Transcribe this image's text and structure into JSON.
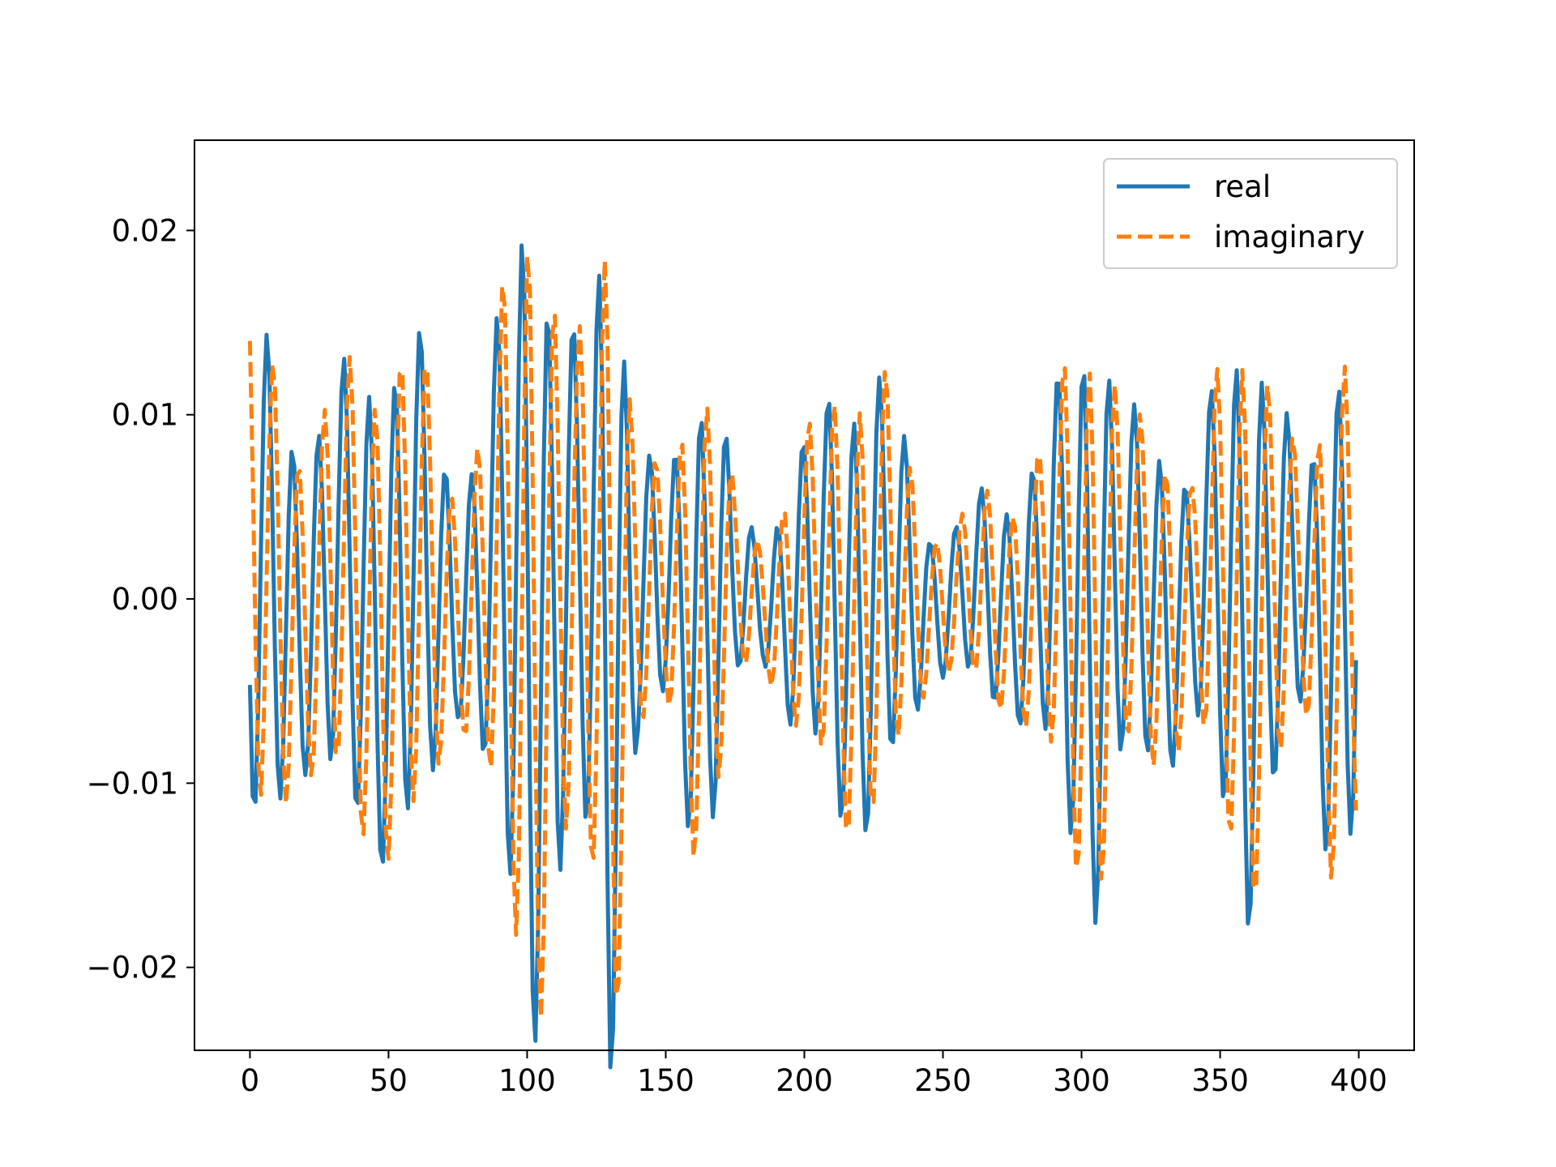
{
  "chart_data": {
    "type": "line",
    "title": "",
    "xlabel": "",
    "ylabel": "",
    "xlim": [
      -20,
      420
    ],
    "ylim": [
      -0.0245,
      0.0249
    ],
    "x_ticks": [
      0,
      50,
      100,
      150,
      200,
      250,
      300,
      350,
      400
    ],
    "y_ticks": [
      -0.02,
      -0.01,
      0.0,
      0.01,
      0.02
    ],
    "x_tick_labels": [
      "0",
      "50",
      "100",
      "150",
      "200",
      "250",
      "300",
      "350",
      "400"
    ],
    "y_tick_labels": [
      "−0.02",
      "−0.01",
      "0.00",
      "0.01",
      "0.02"
    ],
    "grid": false,
    "legend_position": "upper right",
    "x_range": [
      0,
      399
    ],
    "series": [
      {
        "name": "real",
        "color": "#1f77b4",
        "line_style": "solid",
        "envelope": [
          [
            0,
            0.0143
          ],
          [
            20,
            0.0082
          ],
          [
            40,
            0.0125
          ],
          [
            52,
            0.0125
          ],
          [
            60,
            0.0132
          ],
          [
            75,
            0.0055
          ],
          [
            85,
            0.0095
          ],
          [
            92,
            0.0155
          ],
          [
            100,
            0.0222
          ],
          [
            110,
            0.0165
          ],
          [
            118,
            0.012
          ],
          [
            124,
            0.016
          ],
          [
            130,
            0.0228
          ],
          [
            140,
            0.0075
          ],
          [
            150,
            0.0058
          ],
          [
            160,
            0.012
          ],
          [
            168,
            0.0115
          ],
          [
            175,
            0.0048
          ],
          [
            185,
            0.003
          ],
          [
            195,
            0.0065
          ],
          [
            210,
            0.0105
          ],
          [
            220,
            0.012
          ],
          [
            230,
            0.0108
          ],
          [
            245,
            0.0038
          ],
          [
            255,
            0.0038
          ],
          [
            265,
            0.0055
          ],
          [
            275,
            0.0055
          ],
          [
            285,
            0.0075
          ],
          [
            300,
            0.0148
          ],
          [
            305,
            0.0152
          ],
          [
            315,
            0.0092
          ],
          [
            330,
            0.0085
          ],
          [
            340,
            0.006
          ],
          [
            350,
            0.0115
          ],
          [
            360,
            0.0155
          ],
          [
            368,
            0.0115
          ],
          [
            380,
            0.0058
          ],
          [
            390,
            0.013
          ],
          [
            399,
            0.0135
          ]
        ],
        "period": 9.2,
        "phase": 3.6
      },
      {
        "name": "imaginary",
        "color": "#ff7f0e",
        "line_style": "dashed",
        "envelope": [
          [
            0,
            0.0143
          ],
          [
            20,
            0.0082
          ],
          [
            40,
            0.0125
          ],
          [
            52,
            0.0125
          ],
          [
            60,
            0.0132
          ],
          [
            75,
            0.0055
          ],
          [
            85,
            0.0095
          ],
          [
            92,
            0.0155
          ],
          [
            100,
            0.0222
          ],
          [
            110,
            0.0165
          ],
          [
            118,
            0.012
          ],
          [
            124,
            0.016
          ],
          [
            130,
            0.0228
          ],
          [
            140,
            0.0075
          ],
          [
            150,
            0.0058
          ],
          [
            160,
            0.012
          ],
          [
            168,
            0.0115
          ],
          [
            175,
            0.0048
          ],
          [
            185,
            0.003
          ],
          [
            195,
            0.0065
          ],
          [
            210,
            0.0105
          ],
          [
            220,
            0.012
          ],
          [
            230,
            0.0108
          ],
          [
            245,
            0.0038
          ],
          [
            255,
            0.0038
          ],
          [
            265,
            0.0055
          ],
          [
            275,
            0.0055
          ],
          [
            285,
            0.0075
          ],
          [
            300,
            0.0148
          ],
          [
            305,
            0.0152
          ],
          [
            315,
            0.0092
          ],
          [
            330,
            0.0085
          ],
          [
            340,
            0.006
          ],
          [
            350,
            0.0115
          ],
          [
            360,
            0.0155
          ],
          [
            368,
            0.0115
          ],
          [
            380,
            0.0058
          ],
          [
            390,
            0.013
          ],
          [
            399,
            0.0135
          ]
        ],
        "period": 9.2,
        "phase": 2.1
      }
    ]
  }
}
